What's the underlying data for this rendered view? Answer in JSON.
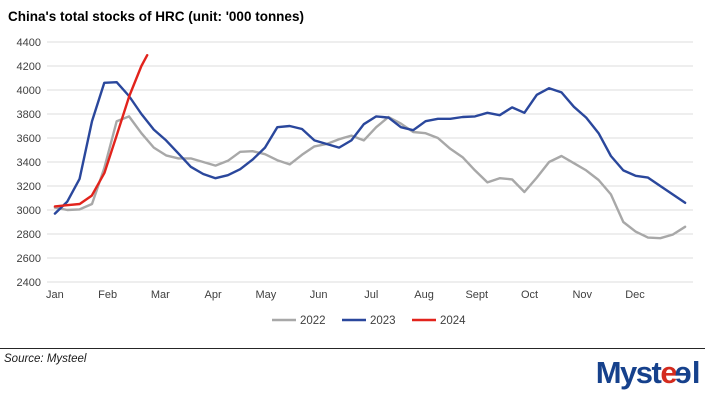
{
  "title": "China's total stocks of HRC (unit: '000 tonnes)",
  "footer": {
    "source": "Source: Mysteel",
    "logo": {
      "text": "Mysteel",
      "parts": [
        {
          "text": "Myst",
          "color": "blue"
        },
        {
          "text": "e",
          "color": "red"
        },
        {
          "text": "e",
          "color": "blue",
          "mirrored": true
        },
        {
          "text": "l",
          "color": "blue"
        }
      ]
    }
  },
  "colors": {
    "grid": "#dcdcdc",
    "axis_text": "#404040",
    "series_2022": "#a8a8a8",
    "series_2023": "#2a479c",
    "series_2024": "#e2231c",
    "logo_blue": "#16418c",
    "logo_red": "#d42b1e"
  },
  "chart_data": {
    "type": "line",
    "title": "China's total stocks of HRC (unit: '000 tonnes)",
    "xlabel": "",
    "ylabel": "'000 tonnes",
    "ylim": [
      2400,
      4400
    ],
    "ytick_step": 200,
    "yticks": [
      4400,
      4200,
      4000,
      3800,
      3600,
      3400,
      3200,
      3000,
      2800,
      2600,
      2400
    ],
    "x_tick_labels": [
      "Jan",
      "Feb",
      "Mar",
      "Apr",
      "May",
      "Jun",
      "Jul",
      "Aug",
      "Sept",
      "Oct",
      "Nov",
      "Dec"
    ],
    "grid": "horizontal",
    "legend_position": "bottom-center",
    "x_unit": "months_from_jan_start",
    "series": [
      {
        "name": "2022",
        "color": "#a8a8a8",
        "m_step": 0.2343,
        "values": [
          3020,
          3000,
          3005,
          3050,
          3350,
          3740,
          3780,
          3640,
          3520,
          3455,
          3430,
          3430,
          3400,
          3370,
          3410,
          3485,
          3490,
          3465,
          3415,
          3380,
          3460,
          3530,
          3550,
          3590,
          3620,
          3580,
          3690,
          3775,
          3720,
          3650,
          3640,
          3600,
          3510,
          3440,
          3330,
          3230,
          3265,
          3255,
          3150,
          3270,
          3400,
          3450,
          3390,
          3330,
          3250,
          3130,
          2900,
          2820,
          2770,
          2765,
          2795,
          2860
        ]
      },
      {
        "name": "2023",
        "color": "#2a479c",
        "m_step": 0.2343,
        "values": [
          2970,
          3070,
          3260,
          3740,
          4060,
          4065,
          3950,
          3800,
          3670,
          3580,
          3470,
          3360,
          3300,
          3265,
          3290,
          3340,
          3420,
          3520,
          3690,
          3700,
          3675,
          3580,
          3550,
          3520,
          3580,
          3715,
          3780,
          3770,
          3690,
          3665,
          3740,
          3760,
          3760,
          3775,
          3780,
          3810,
          3790,
          3855,
          3810,
          3960,
          4015,
          3980,
          3860,
          3770,
          3640,
          3450,
          3330,
          3285,
          3270,
          3200,
          3130,
          3060
        ]
      },
      {
        "name": "2024",
        "color": "#e2231c",
        "m": [
          0,
          0.23,
          0.47,
          0.7,
          0.94,
          1.17,
          1.41,
          1.64,
          1.75
        ],
        "values": [
          3030,
          3040,
          3050,
          3120,
          3310,
          3620,
          3950,
          4200,
          4290
        ]
      }
    ]
  }
}
